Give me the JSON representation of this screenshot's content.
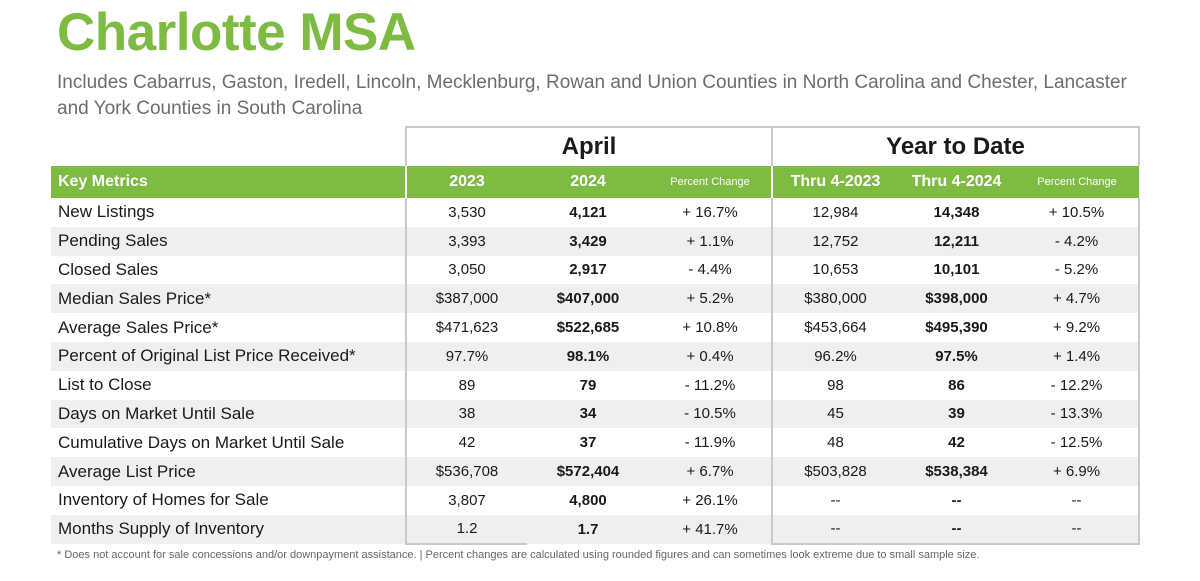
{
  "title": "Charlotte MSA",
  "subtitle": "Includes Cabarrus, Gaston, Iredell, Lincoln, Mecklenburg, Rowan and Union Counties in North Carolina and Chester, Lancaster and York Counties in South Carolina",
  "table": {
    "groups": {
      "april": "April",
      "ytd": "Year to Date"
    },
    "headers": {
      "metric": "Key Metrics",
      "april_2023": "2023",
      "april_2024": "2024",
      "april_pct": "Percent Change",
      "ytd_2023": "Thru 4-2023",
      "ytd_2024": "Thru 4-2024",
      "ytd_pct": "Percent Change"
    },
    "rows": [
      {
        "metric": "New Listings",
        "a2023": "3,530",
        "a2024": "4,121",
        "apct": "+ 16.7%",
        "y2023": "12,984",
        "y2024": "14,348",
        "ypct": "+ 10.5%"
      },
      {
        "metric": "Pending Sales",
        "a2023": "3,393",
        "a2024": "3,429",
        "apct": "+ 1.1%",
        "y2023": "12,752",
        "y2024": "12,211",
        "ypct": "- 4.2%"
      },
      {
        "metric": "Closed Sales",
        "a2023": "3,050",
        "a2024": "2,917",
        "apct": "- 4.4%",
        "y2023": "10,653",
        "y2024": "10,101",
        "ypct": "- 5.2%"
      },
      {
        "metric": "Median Sales Price*",
        "a2023": "$387,000",
        "a2024": "$407,000",
        "apct": "+ 5.2%",
        "y2023": "$380,000",
        "y2024": "$398,000",
        "ypct": "+ 4.7%"
      },
      {
        "metric": "Average Sales Price*",
        "a2023": "$471,623",
        "a2024": "$522,685",
        "apct": "+ 10.8%",
        "y2023": "$453,664",
        "y2024": "$495,390",
        "ypct": "+ 9.2%"
      },
      {
        "metric": "Percent of Original List Price Received*",
        "a2023": "97.7%",
        "a2024": "98.1%",
        "apct": "+ 0.4%",
        "y2023": "96.2%",
        "y2024": "97.5%",
        "ypct": "+ 1.4%"
      },
      {
        "metric": "List to Close",
        "a2023": "89",
        "a2024": "79",
        "apct": "- 11.2%",
        "y2023": "98",
        "y2024": "86",
        "ypct": "- 12.2%"
      },
      {
        "metric": "Days on Market Until Sale",
        "a2023": "38",
        "a2024": "34",
        "apct": "- 10.5%",
        "y2023": "45",
        "y2024": "39",
        "ypct": "- 13.3%"
      },
      {
        "metric": "Cumulative Days on Market Until Sale",
        "a2023": "42",
        "a2024": "37",
        "apct": "- 11.9%",
        "y2023": "48",
        "y2024": "42",
        "ypct": "- 12.5%"
      },
      {
        "metric": "Average List Price",
        "a2023": "$536,708",
        "a2024": "$572,404",
        "apct": "+ 6.7%",
        "y2023": "$503,828",
        "y2024": "$538,384",
        "ypct": "+ 6.9%"
      },
      {
        "metric": "Inventory of Homes for Sale",
        "a2023": "3,807",
        "a2024": "4,800",
        "apct": "+ 26.1%",
        "y2023": "--",
        "y2024": "--",
        "ypct": "--"
      },
      {
        "metric": "Months Supply of Inventory",
        "a2023": "1.2",
        "a2024": "1.7",
        "apct": "+ 41.7%",
        "y2023": "--",
        "y2024": "--",
        "ypct": "--"
      }
    ]
  },
  "footnote": "* Does not account for sale concessions and/or downpayment assistance.  |  Percent changes are calculated using rounded figures and can sometimes look extreme due to small sample size.",
  "colors": {
    "accent": "#7dbb42",
    "row_alt": "#efefef",
    "border": "#c9c9c9"
  }
}
